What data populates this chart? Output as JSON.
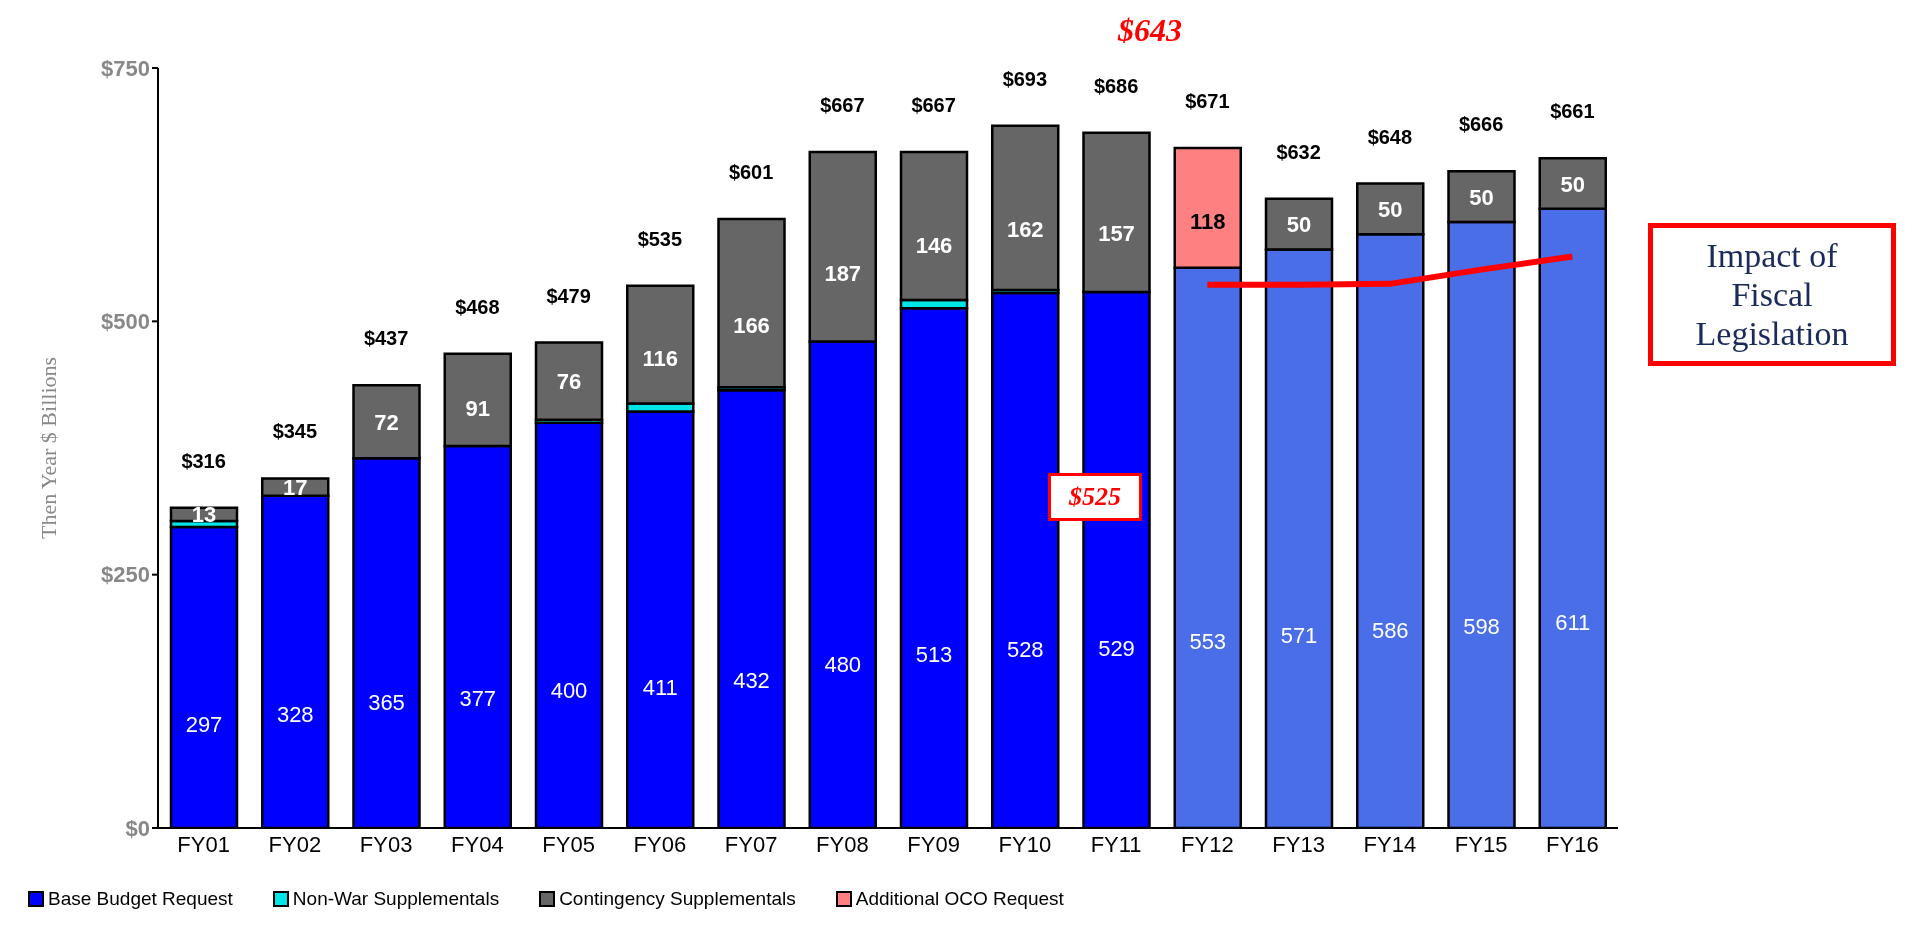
{
  "chart_data": {
    "type": "bar",
    "stacked": true,
    "ylabel": "Then Year $ Billions",
    "categories": [
      "FY01",
      "FY02",
      "FY03",
      "FY04",
      "FY05",
      "FY06",
      "FY07",
      "FY08",
      "FY09",
      "FY10",
      "FY11",
      "FY12",
      "FY13",
      "FY14",
      "FY15",
      "FY16"
    ],
    "ylim": [
      0,
      750
    ],
    "yticks": [
      {
        "value": 0,
        "label": "$0"
      },
      {
        "value": 250,
        "label": "$250"
      },
      {
        "value": 500,
        "label": "$500"
      },
      {
        "value": 750,
        "label": "$750"
      }
    ],
    "grid": false,
    "legend": "bottom",
    "series": [
      {
        "name": "Base Budget Request",
        "color": "#0000ff",
        "colors": [
          "#0000ff",
          "#0000ff",
          "#0000ff",
          "#0000ff",
          "#0000ff",
          "#0000ff",
          "#0000ff",
          "#0000ff",
          "#0000ff",
          "#0000ff",
          "#0000ff",
          "#4a6ee8",
          "#4a6ee8",
          "#4a6ee8",
          "#4a6ee8",
          "#4a6ee8"
        ],
        "values": [
          297,
          328,
          365,
          377,
          400,
          411,
          432,
          480,
          513,
          528,
          529,
          553,
          571,
          586,
          598,
          611
        ],
        "value_labels": [
          "297",
          "328",
          "365",
          "377",
          "400",
          "411",
          "432",
          "480",
          "513",
          "528",
          "529",
          "553",
          "571",
          "586",
          "598",
          "611"
        ]
      },
      {
        "name": "Non-War Supplementals",
        "color": "#00e5e5",
        "values": [
          6,
          null,
          null,
          null,
          3,
          8,
          3,
          null,
          8,
          3,
          null,
          null,
          null,
          null,
          null,
          null
        ]
      },
      {
        "name": "Contingency Supplementals",
        "color": "#666666",
        "values": [
          13,
          17,
          72,
          91,
          76,
          116,
          166,
          187,
          146,
          162,
          157,
          null,
          50,
          50,
          50,
          50
        ],
        "value_labels": [
          "13",
          "17",
          "72",
          "91",
          "76",
          "116",
          "166",
          "187",
          "146",
          "162",
          "157",
          null,
          "50",
          "50",
          "50",
          "50"
        ]
      },
      {
        "name": "Additional OCO Request",
        "color": "#ff8080",
        "values": [
          null,
          null,
          null,
          null,
          null,
          null,
          null,
          null,
          null,
          null,
          null,
          118,
          null,
          null,
          null,
          null
        ],
        "value_labels": [
          null,
          null,
          null,
          null,
          null,
          null,
          null,
          null,
          null,
          null,
          null,
          "118",
          null,
          null,
          null,
          null
        ]
      },
      {
        "type": "line",
        "color": "#ff0000",
        "values": [
          null,
          null,
          null,
          null,
          null,
          null,
          null,
          null,
          null,
          null,
          null,
          536,
          536,
          537,
          551,
          564
        ]
      }
    ],
    "annotations": [
      "$643",
      "$525",
      "Impact of Fiscal Legislation",
      "$316",
      "$345",
      "$437",
      "$468",
      "$479",
      "$535",
      "$601",
      "$667",
      "$667",
      "$693",
      "$686",
      "$671",
      "$632",
      "$648",
      "$666",
      "$661"
    ]
  }
}
